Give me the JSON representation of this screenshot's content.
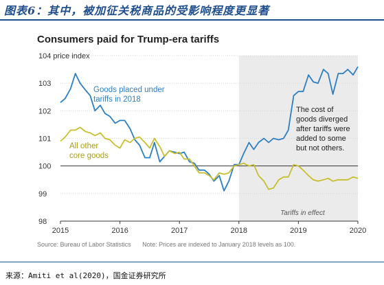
{
  "header": {
    "title": "图表6：其中，被加征关税商品的受影响程度更显著"
  },
  "footer": {
    "source": "来源：Amiti et al(2020)，国金证券研究所"
  },
  "chart_data": {
    "type": "line",
    "title": "Consumers paid for Trump-era tariffs",
    "ylabel": "104 price index",
    "ylim": [
      98,
      104
    ],
    "xlim": [
      2015,
      2020
    ],
    "yticks": [
      "98",
      "99",
      "100",
      "101",
      "102",
      "103",
      ""
    ],
    "xticks": [
      {
        "value": 2015,
        "label": "2015"
      },
      {
        "value": 2016,
        "label": "2016"
      },
      {
        "value": 2017,
        "label": "2017"
      },
      {
        "value": 2018,
        "label": "2018"
      },
      {
        "value": 2019,
        "label": "2019"
      },
      {
        "value": 2020,
        "label": "2020"
      }
    ],
    "shaded_region": {
      "from": 2018,
      "to": 2020,
      "label": "Tariffs in effect"
    },
    "annotation": "The cost of goods diverged after tariffs were added to some but not others.",
    "source": "Source: Bureau of Labor Statistics",
    "note": "Note: Prices are indexed to January 2018 levels as 100.",
    "colors": {
      "tariff": "#2b7fc3",
      "other": "#c8bf2e",
      "shade": "#ebebeb"
    },
    "series": [
      {
        "name": "Goods placed under tariffs in 2018",
        "color": "#2b7fc3",
        "x": [
          2015.0,
          2015.08,
          2015.17,
          2015.25,
          2015.33,
          2015.42,
          2015.5,
          2015.58,
          2015.67,
          2015.75,
          2015.83,
          2015.92,
          2016.0,
          2016.08,
          2016.17,
          2016.25,
          2016.33,
          2016.42,
          2016.5,
          2016.58,
          2016.67,
          2016.75,
          2016.83,
          2016.92,
          2017.0,
          2017.08,
          2017.17,
          2017.25,
          2017.33,
          2017.42,
          2017.5,
          2017.58,
          2017.67,
          2017.75,
          2017.83,
          2017.92,
          2018.0,
          2018.08,
          2018.17,
          2018.25,
          2018.33,
          2018.42,
          2018.5,
          2018.58,
          2018.67,
          2018.75,
          2018.83,
          2018.92,
          2019.0,
          2019.08,
          2019.17,
          2019.25,
          2019.33,
          2019.42,
          2019.5,
          2019.58,
          2019.67,
          2019.75,
          2019.83,
          2019.92,
          2020.0
        ],
        "values": [
          102.3,
          102.45,
          102.8,
          103.35,
          103.0,
          102.75,
          102.55,
          102.0,
          102.2,
          101.9,
          101.8,
          101.55,
          101.65,
          101.65,
          101.35,
          100.95,
          100.75,
          100.3,
          100.3,
          100.85,
          100.15,
          100.35,
          100.55,
          100.5,
          100.45,
          100.5,
          100.15,
          100.1,
          99.85,
          99.85,
          99.7,
          99.45,
          99.65,
          99.1,
          99.45,
          100.05,
          100.05,
          100.45,
          100.85,
          100.6,
          100.85,
          101.0,
          100.85,
          101.0,
          100.95,
          101.0,
          101.3,
          102.55,
          102.7,
          102.7,
          103.3,
          103.05,
          103.0,
          103.5,
          103.35,
          102.6,
          103.35,
          103.35,
          103.5,
          103.3,
          103.6
        ]
      },
      {
        "name": "All other core goods",
        "color": "#c8bf2e",
        "x": [
          2015.0,
          2015.08,
          2015.17,
          2015.25,
          2015.33,
          2015.42,
          2015.5,
          2015.58,
          2015.67,
          2015.75,
          2015.83,
          2015.92,
          2016.0,
          2016.08,
          2016.17,
          2016.25,
          2016.33,
          2016.42,
          2016.5,
          2016.58,
          2016.67,
          2016.75,
          2016.83,
          2016.92,
          2017.0,
          2017.08,
          2017.17,
          2017.25,
          2017.33,
          2017.42,
          2017.5,
          2017.58,
          2017.67,
          2017.75,
          2017.83,
          2017.92,
          2018.0,
          2018.08,
          2018.17,
          2018.25,
          2018.33,
          2018.42,
          2018.5,
          2018.58,
          2018.67,
          2018.75,
          2018.83,
          2018.92,
          2019.0,
          2019.08,
          2019.17,
          2019.25,
          2019.33,
          2019.42,
          2019.5,
          2019.58,
          2019.67,
          2019.75,
          2019.83,
          2019.92,
          2020.0
        ],
        "values": [
          100.9,
          101.05,
          101.3,
          101.3,
          101.4,
          101.25,
          101.2,
          101.1,
          101.2,
          101.0,
          100.95,
          100.75,
          100.65,
          100.95,
          100.85,
          101.0,
          101.05,
          100.85,
          100.65,
          101.0,
          100.7,
          100.35,
          100.55,
          100.45,
          100.5,
          100.25,
          100.25,
          100.0,
          99.75,
          99.75,
          99.65,
          99.5,
          99.75,
          99.7,
          99.75,
          100.0,
          100.05,
          100.1,
          100.0,
          100.05,
          99.65,
          99.45,
          99.15,
          99.2,
          99.5,
          99.6,
          99.6,
          100.05,
          100.0,
          99.85,
          99.65,
          99.5,
          99.45,
          99.5,
          99.55,
          99.45,
          99.5,
          99.5,
          99.5,
          99.6,
          99.55
        ]
      }
    ],
    "labels": {
      "tariff": [
        "Goods placed under",
        "tariffs in 2018"
      ],
      "other": [
        "All other",
        "core goods"
      ],
      "annotation_lines": [
        "The cost of",
        "goods diverged",
        "after tariffs were",
        "added to some",
        "but not others."
      ]
    }
  }
}
